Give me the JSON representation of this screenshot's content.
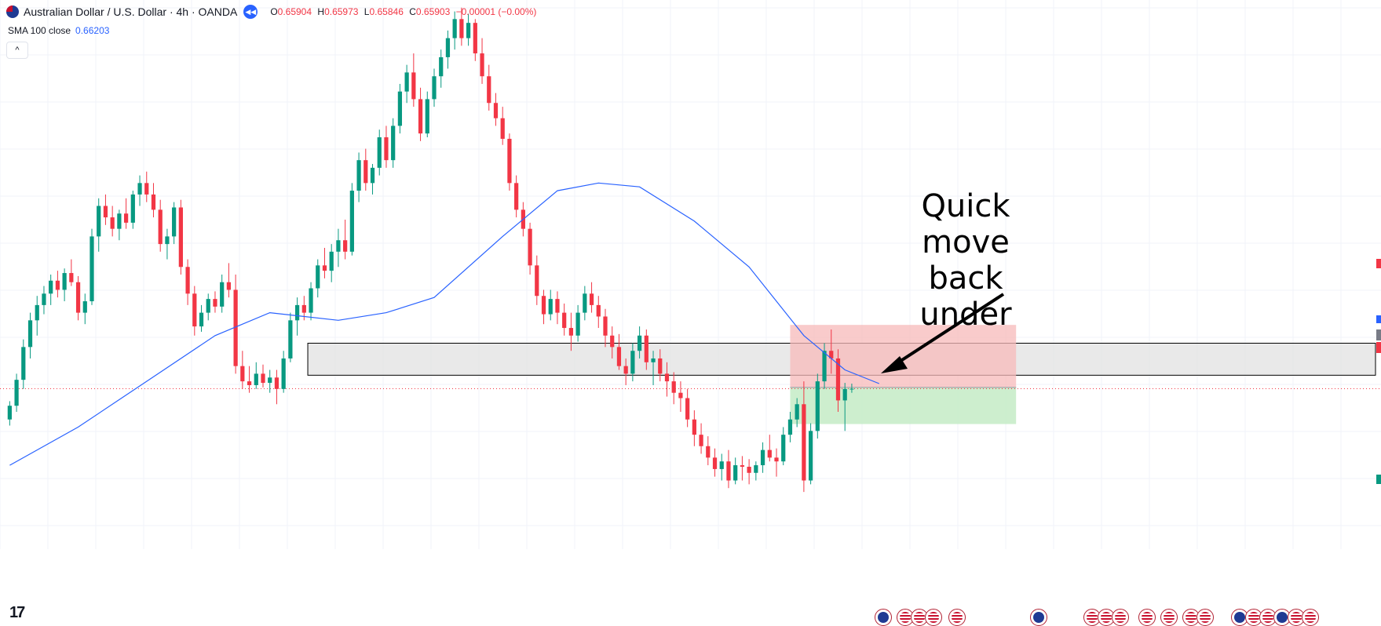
{
  "header": {
    "symbol_title": "Australian Dollar / U.S. Dollar · 4h · OANDA",
    "open_label": "O",
    "open_value": "0.65904",
    "high_label": "H",
    "high_value": "0.65973",
    "low_label": "L",
    "low_value": "0.65846",
    "close_label": "C",
    "close_value": "0.65903",
    "change_value": "−0.00001 (−0.00%)"
  },
  "indicator": {
    "label": "SMA 100 close",
    "value": "0.66203"
  },
  "annotation": {
    "line1": "Quick move",
    "line2": "back under"
  },
  "icons": [
    "flag-au-us-icon",
    "replay-icon",
    "chevron-up-icon",
    "tradingview-logo-icon",
    "economic-event-flag-icon"
  ],
  "colors": {
    "up": "#089981",
    "down": "#f23645",
    "sma": "#2962ff",
    "zone_fill": "#e0e0e0",
    "zone_border": "#000000",
    "stop_fill": "#f7b9b9",
    "target_fill": "#c8ecc9",
    "price_line": "#f23645",
    "arrow": "#000000"
  },
  "chart_data": {
    "type": "candlestick",
    "symbol": "AUDUSD",
    "timeframe": "4h",
    "last_close": 0.65903,
    "candles": [
      [
        0.655,
        0.6574,
        0.6542,
        0.6568
      ],
      [
        0.6568,
        0.661,
        0.656,
        0.6602
      ],
      [
        0.6602,
        0.6655,
        0.659,
        0.6645
      ],
      [
        0.6645,
        0.669,
        0.663,
        0.668
      ],
      [
        0.668,
        0.6712,
        0.666,
        0.67
      ],
      [
        0.67,
        0.6725,
        0.6688,
        0.6715
      ],
      [
        0.6715,
        0.674,
        0.67,
        0.6732
      ],
      [
        0.6732,
        0.6745,
        0.671,
        0.672
      ],
      [
        0.672,
        0.6748,
        0.6705,
        0.6742
      ],
      [
        0.6742,
        0.676,
        0.6725,
        0.673
      ],
      [
        0.673,
        0.6738,
        0.668,
        0.669
      ],
      [
        0.669,
        0.6715,
        0.6675,
        0.6705
      ],
      [
        0.6705,
        0.68,
        0.67,
        0.679
      ],
      [
        0.679,
        0.684,
        0.677,
        0.683
      ],
      [
        0.683,
        0.6845,
        0.6805,
        0.6815
      ],
      [
        0.6815,
        0.683,
        0.679,
        0.68
      ],
      [
        0.68,
        0.6825,
        0.6785,
        0.682
      ],
      [
        0.682,
        0.684,
        0.68,
        0.6808
      ],
      [
        0.6808,
        0.685,
        0.68,
        0.6845
      ],
      [
        0.6845,
        0.687,
        0.683,
        0.686
      ],
      [
        0.686,
        0.6875,
        0.6835,
        0.6845
      ],
      [
        0.6845,
        0.686,
        0.6815,
        0.6825
      ],
      [
        0.6825,
        0.6838,
        0.677,
        0.678
      ],
      [
        0.678,
        0.68,
        0.676,
        0.679
      ],
      [
        0.679,
        0.6835,
        0.678,
        0.6828
      ],
      [
        0.6828,
        0.6838,
        0.674,
        0.675
      ],
      [
        0.675,
        0.676,
        0.67,
        0.6715
      ],
      [
        0.6715,
        0.6725,
        0.666,
        0.6672
      ],
      [
        0.6672,
        0.67,
        0.6665,
        0.669
      ],
      [
        0.669,
        0.6715,
        0.668,
        0.6708
      ],
      [
        0.6708,
        0.6718,
        0.669,
        0.6698
      ],
      [
        0.6698,
        0.674,
        0.669,
        0.673
      ],
      [
        0.673,
        0.6755,
        0.671,
        0.672
      ],
      [
        0.672,
        0.674,
        0.661,
        0.662
      ],
      [
        0.662,
        0.664,
        0.659,
        0.66
      ],
      [
        0.66,
        0.662,
        0.6585,
        0.6595
      ],
      [
        0.6595,
        0.6625,
        0.659,
        0.661
      ],
      [
        0.661,
        0.6622,
        0.6592,
        0.6598
      ],
      [
        0.6598,
        0.6615,
        0.6585,
        0.6605
      ],
      [
        0.6605,
        0.6615,
        0.657,
        0.659
      ],
      [
        0.659,
        0.664,
        0.6585,
        0.663
      ],
      [
        0.663,
        0.669,
        0.6625,
        0.668
      ],
      [
        0.668,
        0.671,
        0.666,
        0.67
      ],
      [
        0.67,
        0.6712,
        0.668,
        0.669
      ],
      [
        0.669,
        0.673,
        0.668,
        0.6722
      ],
      [
        0.6722,
        0.676,
        0.671,
        0.6752
      ],
      [
        0.6752,
        0.6775,
        0.6735,
        0.6745
      ],
      [
        0.6745,
        0.678,
        0.673,
        0.677
      ],
      [
        0.677,
        0.68,
        0.675,
        0.6785
      ],
      [
        0.6785,
        0.6812,
        0.676,
        0.677
      ],
      [
        0.677,
        0.686,
        0.6765,
        0.685
      ],
      [
        0.685,
        0.69,
        0.6835,
        0.689
      ],
      [
        0.689,
        0.6905,
        0.685,
        0.686
      ],
      [
        0.686,
        0.6885,
        0.6845,
        0.688
      ],
      [
        0.688,
        0.693,
        0.687,
        0.692
      ],
      [
        0.692,
        0.6935,
        0.688,
        0.689
      ],
      [
        0.689,
        0.6945,
        0.688,
        0.6935
      ],
      [
        0.6935,
        0.699,
        0.6925,
        0.698
      ],
      [
        0.698,
        0.7015,
        0.6965,
        0.7005
      ],
      [
        0.7005,
        0.703,
        0.696,
        0.697
      ],
      [
        0.697,
        0.6985,
        0.6915,
        0.6925
      ],
      [
        0.6925,
        0.698,
        0.692,
        0.697
      ],
      [
        0.697,
        0.701,
        0.696,
        0.7
      ],
      [
        0.7,
        0.7035,
        0.6985,
        0.7025
      ],
      [
        0.7025,
        0.706,
        0.701,
        0.705
      ],
      [
        0.705,
        0.7085,
        0.7035,
        0.7075
      ],
      [
        0.7075,
        0.709,
        0.704,
        0.705
      ],
      [
        0.705,
        0.7082,
        0.704,
        0.707
      ],
      [
        0.707,
        0.7075,
        0.702,
        0.703
      ],
      [
        0.703,
        0.705,
        0.699,
        0.7
      ],
      [
        0.7,
        0.7015,
        0.6955,
        0.6965
      ],
      [
        0.6965,
        0.6978,
        0.6935,
        0.6945
      ],
      [
        0.6945,
        0.696,
        0.691,
        0.6918
      ],
      [
        0.6918,
        0.6925,
        0.685,
        0.686
      ],
      [
        0.686,
        0.687,
        0.6815,
        0.6825
      ],
      [
        0.6825,
        0.6835,
        0.679,
        0.68
      ],
      [
        0.68,
        0.6808,
        0.674,
        0.6752
      ],
      [
        0.6752,
        0.6765,
        0.67,
        0.6712
      ],
      [
        0.6712,
        0.672,
        0.6675,
        0.6688
      ],
      [
        0.6688,
        0.672,
        0.668,
        0.6708
      ],
      [
        0.6708,
        0.6718,
        0.6675,
        0.669
      ],
      [
        0.669,
        0.6702,
        0.666,
        0.667
      ],
      [
        0.667,
        0.669,
        0.664,
        0.666
      ],
      [
        0.666,
        0.67,
        0.6652,
        0.669
      ],
      [
        0.669,
        0.6725,
        0.668,
        0.6715
      ],
      [
        0.6715,
        0.673,
        0.669,
        0.67
      ],
      [
        0.67,
        0.6712,
        0.667,
        0.6685
      ],
      [
        0.6685,
        0.6695,
        0.6645,
        0.666
      ],
      [
        0.666,
        0.6672,
        0.663,
        0.6645
      ],
      [
        0.6645,
        0.6662,
        0.6615,
        0.662
      ],
      [
        0.662,
        0.663,
        0.6595,
        0.661
      ],
      [
        0.661,
        0.665,
        0.66,
        0.664
      ],
      [
        0.664,
        0.6672,
        0.663,
        0.666
      ],
      [
        0.666,
        0.6668,
        0.6615,
        0.6625
      ],
      [
        0.6625,
        0.664,
        0.6595,
        0.663
      ],
      [
        0.663,
        0.6642,
        0.66,
        0.661
      ],
      [
        0.661,
        0.6625,
        0.658,
        0.66
      ],
      [
        0.66,
        0.6612,
        0.657,
        0.6585
      ],
      [
        0.6585,
        0.66,
        0.656,
        0.6578
      ],
      [
        0.6578,
        0.659,
        0.654,
        0.655
      ],
      [
        0.655,
        0.6562,
        0.6515,
        0.653
      ],
      [
        0.653,
        0.6545,
        0.6505,
        0.6515
      ],
      [
        0.6515,
        0.6528,
        0.649,
        0.65
      ],
      [
        0.65,
        0.6512,
        0.6475,
        0.6485
      ],
      [
        0.6485,
        0.6505,
        0.647,
        0.6495
      ],
      [
        0.6495,
        0.651,
        0.646,
        0.647
      ],
      [
        0.647,
        0.65,
        0.6465,
        0.649
      ],
      [
        0.649,
        0.6502,
        0.647,
        0.6488
      ],
      [
        0.6488,
        0.6498,
        0.6465,
        0.648
      ],
      [
        0.648,
        0.6495,
        0.647,
        0.649
      ],
      [
        0.649,
        0.652,
        0.648,
        0.651
      ],
      [
        0.651,
        0.653,
        0.6495,
        0.65
      ],
      [
        0.65,
        0.6512,
        0.6475,
        0.6495
      ],
      [
        0.6495,
        0.654,
        0.649,
        0.653
      ],
      [
        0.653,
        0.656,
        0.652,
        0.655
      ],
      [
        0.655,
        0.6578,
        0.654,
        0.657
      ],
      [
        0.657,
        0.66,
        0.6455,
        0.647
      ],
      [
        0.647,
        0.6545,
        0.6465,
        0.6535
      ],
      [
        0.6535,
        0.661,
        0.6525,
        0.66
      ],
      [
        0.66,
        0.665,
        0.659,
        0.664
      ],
      [
        0.664,
        0.6668,
        0.661,
        0.663
      ],
      [
        0.663,
        0.6642,
        0.656,
        0.6575
      ],
      [
        0.6575,
        0.6598,
        0.6535,
        0.659
      ],
      [
        0.659,
        0.6597,
        0.6585,
        0.65903
      ]
    ],
    "sma_label": "SMA 100 close",
    "sma_last": 0.66203,
    "sma": [
      [
        0,
        0.649
      ],
      [
        10,
        0.654
      ],
      [
        20,
        0.66
      ],
      [
        30,
        0.666
      ],
      [
        38,
        0.669
      ],
      [
        48,
        0.668
      ],
      [
        55,
        0.669
      ],
      [
        62,
        0.671
      ],
      [
        72,
        0.679
      ],
      [
        80,
        0.685
      ],
      [
        86,
        0.686
      ],
      [
        92,
        0.6855
      ],
      [
        100,
        0.681
      ],
      [
        108,
        0.675
      ],
      [
        116,
        0.666
      ],
      [
        122,
        0.6615
      ],
      [
        127,
        0.6597
      ]
    ],
    "resistance_zone": {
      "low": 0.6608,
      "high": 0.665
    },
    "position": {
      "entry": 0.6592,
      "stop": 0.6674,
      "target": 0.6544,
      "from_bar": 114,
      "to_bar": 147
    },
    "ylim": [
      0.638,
      0.71
    ],
    "xbars": 200,
    "grid": true
  }
}
